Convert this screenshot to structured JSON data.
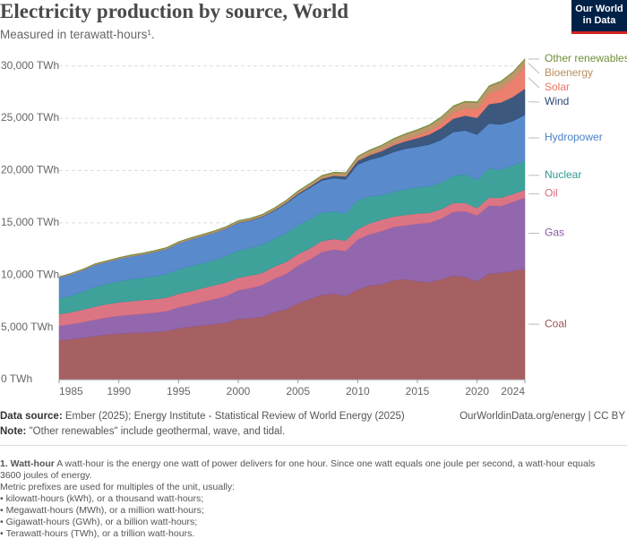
{
  "logo": [
    "Our World",
    "in Data"
  ],
  "source": {
    "label": "Data source:",
    "text": "Ember (2025); Energy Institute - Statistical Review of World Energy (2025)"
  },
  "url": "OurWorldinData.org/energy | CC BY",
  "note": {
    "label": "Note:",
    "text": "\"Other renewables\" include geothermal, wave, and tidal."
  },
  "footnote": {
    "label": "1. Watt-hour",
    "text": "A watt-hour is the energy one watt of power delivers for one hour. Since one watt equals one joule per second, a watt-hour equals 3600 joules of energy.",
    "prefix_intro": "Metric prefixes are used for multiples of the unit, usually:",
    "items": [
      "kilowatt-hours (kWh), or a thousand watt-hours;",
      "Megawatt-hours (MWh), or a million watt-hours;",
      "Gigawatt-hours (GWh), or a billion watt-hours;",
      "Terawatt-hours (TWh), or a trillion watt-hours."
    ]
  },
  "chart_data": {
    "type": "stacked_area",
    "title": "Electricity production by source, World",
    "subtitle": "Measured in terawatt-hours¹.",
    "x": [
      1985,
      1986,
      1987,
      1988,
      1989,
      1990,
      1991,
      1992,
      1993,
      1994,
      1995,
      1996,
      1997,
      1998,
      1999,
      2000,
      2001,
      2002,
      2003,
      2004,
      2005,
      2006,
      2007,
      2008,
      2009,
      2010,
      2011,
      2012,
      2013,
      2014,
      2015,
      2016,
      2017,
      2018,
      2019,
      2020,
      2021,
      2022,
      2023,
      2024
    ],
    "xlim": [
      1985,
      2024
    ],
    "xticks": [
      1985,
      1990,
      1995,
      2000,
      2005,
      2010,
      2015,
      2020,
      2024
    ],
    "ylim": [
      0,
      31000
    ],
    "yticks": [
      {
        "value": 0,
        "label": "0 TWh"
      },
      {
        "value": 5000,
        "label": "5,000 TWh"
      },
      {
        "value": 10000,
        "label": "10,000 TWh"
      },
      {
        "value": 15000,
        "label": "15,000 TWh"
      },
      {
        "value": 20000,
        "label": "20,000 TWh"
      },
      {
        "value": 25000,
        "label": "25,000 TWh"
      },
      {
        "value": 30000,
        "label": "30,000 TWh"
      }
    ],
    "grid": true,
    "series": [
      {
        "name": "Coal",
        "color": "#9e5254",
        "values": [
          3750,
          3850,
          4000,
          4150,
          4300,
          4400,
          4450,
          4500,
          4550,
          4650,
          4900,
          5050,
          5200,
          5300,
          5450,
          5800,
          5850,
          6000,
          6450,
          6700,
          7300,
          7700,
          8100,
          8200,
          8000,
          8600,
          9000,
          9100,
          9500,
          9600,
          9400,
          9300,
          9600,
          9950,
          9800,
          9400,
          10150,
          10200,
          10400,
          10600
        ]
      },
      {
        "name": "Gas",
        "color": "#8a5aa6",
        "values": [
          1400,
          1450,
          1500,
          1580,
          1640,
          1700,
          1750,
          1800,
          1850,
          1900,
          2000,
          2100,
          2250,
          2400,
          2550,
          2750,
          2900,
          3050,
          3200,
          3400,
          3600,
          3800,
          4100,
          4250,
          4300,
          4800,
          4900,
          5100,
          5100,
          5150,
          5500,
          5700,
          5800,
          6100,
          6300,
          6300,
          6500,
          6400,
          6600,
          6800
        ]
      },
      {
        "name": "Oil",
        "color": "#d8697a",
        "values": [
          1100,
          1150,
          1200,
          1250,
          1280,
          1300,
          1300,
          1310,
          1290,
          1300,
          1300,
          1300,
          1300,
          1320,
          1300,
          1200,
          1200,
          1150,
          1150,
          1150,
          1100,
          1050,
          1050,
          1000,
          1000,
          1000,
          1050,
          1100,
          1000,
          1000,
          1000,
          950,
          900,
          850,
          800,
          700,
          750,
          800,
          750,
          750
        ]
      },
      {
        "name": "Nuclear",
        "color": "#2e9a92",
        "values": [
          1500,
          1600,
          1730,
          1900,
          1950,
          2000,
          2100,
          2130,
          2190,
          2270,
          2330,
          2420,
          2400,
          2430,
          2530,
          2590,
          2650,
          2700,
          2680,
          2770,
          2770,
          2800,
          2750,
          2630,
          2610,
          2750,
          2580,
          2350,
          2370,
          2440,
          2490,
          2540,
          2570,
          2600,
          2720,
          2690,
          2800,
          2680,
          2740,
          2770
        ]
      },
      {
        "name": "Hydropower",
        "color": "#4b80c8",
        "values": [
          2000,
          2040,
          2050,
          2100,
          2100,
          2150,
          2200,
          2230,
          2330,
          2370,
          2500,
          2530,
          2570,
          2600,
          2620,
          2650,
          2600,
          2650,
          2650,
          2800,
          2900,
          3000,
          3050,
          3200,
          3250,
          3430,
          3500,
          3680,
          3800,
          3900,
          3880,
          4000,
          4060,
          4180,
          4210,
          4350,
          4300,
          4330,
          4250,
          4400
        ]
      },
      {
        "name": "Wind",
        "color": "#2c4a73",
        "values": [
          0,
          0,
          0,
          0,
          0,
          4,
          4,
          5,
          6,
          7,
          8,
          10,
          12,
          16,
          21,
          31,
          38,
          52,
          63,
          85,
          104,
          133,
          171,
          220,
          276,
          342,
          437,
          524,
          645,
          712,
          830,
          960,
          1140,
          1270,
          1420,
          1590,
          1850,
          2100,
          2300,
          2500
        ]
      },
      {
        "name": "Solar",
        "color": "#eb7462",
        "values": [
          0,
          0,
          0,
          0,
          0,
          0,
          0,
          0,
          0,
          0,
          0,
          0,
          0,
          0,
          0,
          1,
          1,
          1,
          1,
          2,
          4,
          6,
          8,
          12,
          21,
          32,
          64,
          100,
          140,
          190,
          250,
          330,
          450,
          580,
          700,
          830,
          1020,
          1300,
          1640,
          2100
        ]
      },
      {
        "name": "Bioenergy",
        "color": "#b98d5e",
        "values": [
          50,
          55,
          60,
          65,
          70,
          80,
          85,
          90,
          95,
          100,
          110,
          115,
          120,
          125,
          130,
          140,
          145,
          155,
          170,
          190,
          220,
          235,
          250,
          270,
          290,
          350,
          380,
          410,
          440,
          470,
          500,
          530,
          550,
          580,
          600,
          630,
          660,
          670,
          680,
          690
        ]
      },
      {
        "name": "Other renewables",
        "color": "#6f8f3a",
        "values": [
          40,
          42,
          44,
          46,
          48,
          50,
          50,
          52,
          52,
          54,
          55,
          55,
          56,
          56,
          58,
          60,
          60,
          62,
          63,
          65,
          66,
          67,
          68,
          68,
          69,
          70,
          70,
          72,
          74,
          76,
          78,
          80,
          82,
          84,
          86,
          88,
          88,
          89,
          90,
          90
        ]
      }
    ]
  }
}
